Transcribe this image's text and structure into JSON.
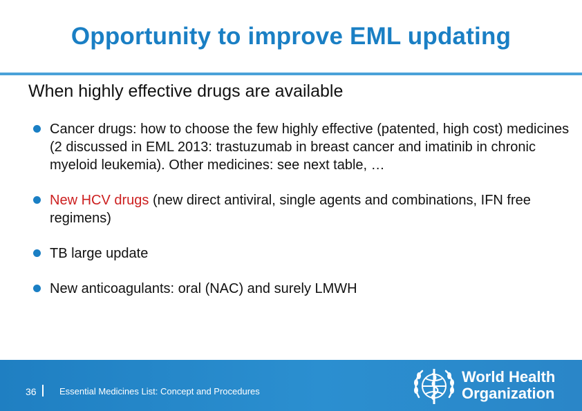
{
  "slide": {
    "title": "Opportunity to improve EML updating",
    "subtitle": "When highly effective drugs are available",
    "bullets": [
      {
        "text": "Cancer drugs: how to choose the few highly effective (patented, high cost) medicines (2 discussed in EML 2013: trastuzumab in breast cancer and imatinib in chronic myeloid leukemia). Other medicines: see next table, …"
      },
      {
        "highlight": "New HCV drugs",
        "text": " (new direct antiviral, single agents and combinations, IFN free regimens)"
      },
      {
        "text": "TB large update"
      },
      {
        "text": "New anticoagulants: oral (NAC) and surely LMWH"
      }
    ]
  },
  "footer": {
    "page_number": "36",
    "text": "Essential Medicines List: Concept and Procedures",
    "org_line1": "World Health",
    "org_line2": "Organization",
    "logo_icon": "who-emblem-icon"
  },
  "colors": {
    "accent": "#1a7fc4",
    "highlight": "#cc1f1f",
    "footer_bg": "#2b8fd0"
  }
}
